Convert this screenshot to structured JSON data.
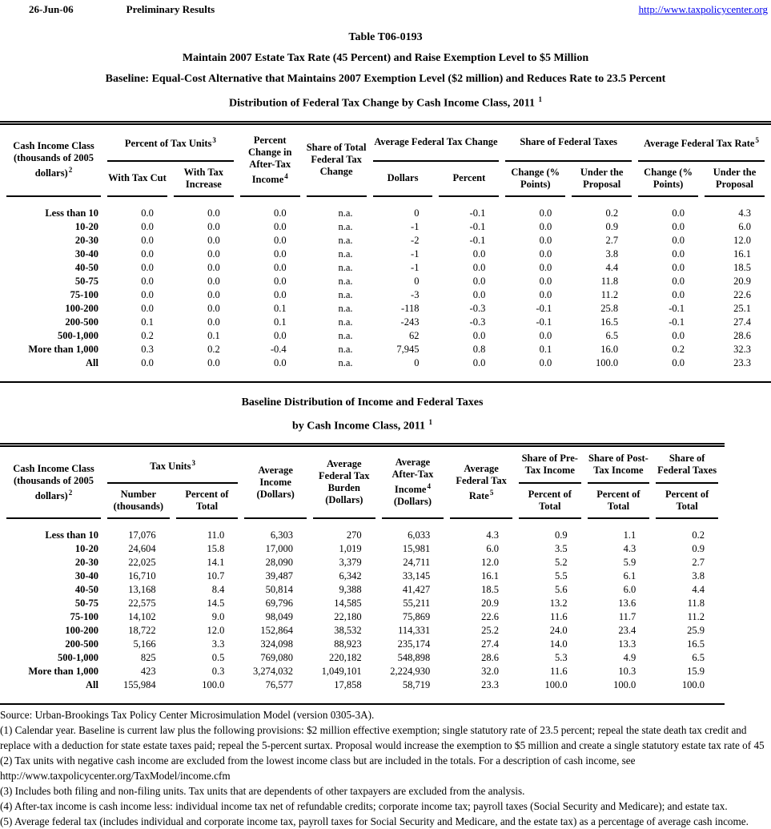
{
  "header": {
    "date": "26-Jun-06",
    "status": "Preliminary Results",
    "link": "http://www.taxpolicycenter.org"
  },
  "titles": {
    "table_number": "Table T06-0193",
    "line1": "Maintain 2007 Estate Tax Rate (45 Percent) and Raise Exemption Level to $5 Million",
    "line2": "Baseline: Equal-Cost Alternative that Maintains 2007 Exemption Level ($2 million) and Reduces Rate to 23.5 Percent",
    "line3": "Distribution of Federal Tax Change by Cash Income Class, 2011",
    "line3_sup": "1"
  },
  "table1": {
    "h": {
      "cash_income_class": "Cash Income Class (thousands of 2005 dollars)",
      "cash_income_class_sup": "2",
      "pct_tax_units": "Percent of Tax Units",
      "pct_tax_units_sup": "3",
      "with_tax_cut": "With Tax Cut",
      "with_tax_increase": "With Tax Increase",
      "pct_change_ati": "Percent Change in After-Tax Income",
      "pct_change_ati_sup": "4",
      "share_total": "Share of Total Federal Tax Change",
      "avg_fed_tax_change": "Average Federal Tax Change",
      "dollars": "Dollars",
      "percent": "Percent",
      "share_fed_taxes": "Share of Federal Taxes",
      "change_pts": "Change (% Points)",
      "under_proposal": "Under the Proposal",
      "avg_fed_tax_rate": "Average Federal Tax Rate",
      "avg_fed_tax_rate_sup": "5"
    },
    "rows": [
      [
        "Less than 10",
        "0.0",
        "0.0",
        "0.0",
        "n.a.",
        "0",
        "-0.1",
        "0.0",
        "0.2",
        "0.0",
        "4.3"
      ],
      [
        "10-20",
        "0.0",
        "0.0",
        "0.0",
        "n.a.",
        "-1",
        "-0.1",
        "0.0",
        "0.9",
        "0.0",
        "6.0"
      ],
      [
        "20-30",
        "0.0",
        "0.0",
        "0.0",
        "n.a.",
        "-2",
        "-0.1",
        "0.0",
        "2.7",
        "0.0",
        "12.0"
      ],
      [
        "30-40",
        "0.0",
        "0.0",
        "0.0",
        "n.a.",
        "-1",
        "0.0",
        "0.0",
        "3.8",
        "0.0",
        "16.1"
      ],
      [
        "40-50",
        "0.0",
        "0.0",
        "0.0",
        "n.a.",
        "-1",
        "0.0",
        "0.0",
        "4.4",
        "0.0",
        "18.5"
      ],
      [
        "50-75",
        "0.0",
        "0.0",
        "0.0",
        "n.a.",
        "0",
        "0.0",
        "0.0",
        "11.8",
        "0.0",
        "20.9"
      ],
      [
        "75-100",
        "0.0",
        "0.0",
        "0.0",
        "n.a.",
        "-3",
        "0.0",
        "0.0",
        "11.2",
        "0.0",
        "22.6"
      ],
      [
        "100-200",
        "0.0",
        "0.0",
        "0.1",
        "n.a.",
        "-118",
        "-0.3",
        "-0.1",
        "25.8",
        "-0.1",
        "25.1"
      ],
      [
        "200-500",
        "0.1",
        "0.0",
        "0.1",
        "n.a.",
        "-243",
        "-0.3",
        "-0.1",
        "16.5",
        "-0.1",
        "27.4"
      ],
      [
        "500-1,000",
        "0.2",
        "0.1",
        "0.0",
        "n.a.",
        "62",
        "0.0",
        "0.0",
        "6.5",
        "0.0",
        "28.6"
      ],
      [
        "More than 1,000",
        "0.3",
        "0.2",
        "-0.4",
        "n.a.",
        "7,945",
        "0.8",
        "0.1",
        "16.0",
        "0.2",
        "32.3"
      ],
      [
        "All",
        "0.0",
        "0.0",
        "0.0",
        "n.a.",
        "0",
        "0.0",
        "0.0",
        "100.0",
        "0.0",
        "23.3"
      ]
    ]
  },
  "table2_title": {
    "line1": "Baseline Distribution of Income and Federal Taxes",
    "line2": "by Cash Income Class, 2011",
    "sup": "1"
  },
  "table2": {
    "h": {
      "cash_income_class": "Cash Income Class (thousands of 2005 dollars)",
      "cash_income_class_sup": "2",
      "tax_units": "Tax Units",
      "tax_units_sup": "3",
      "number_thousands": "Number (thousands)",
      "percent_of_total": "Percent of Total",
      "avg_income": "Average Income (Dollars)",
      "avg_fed_tax_burden": "Average Federal Tax Burden (Dollars)",
      "avg_after_tax_income": "Average After-Tax Income",
      "avg_after_tax_income_sup": "4",
      "avg_after_tax_income_suffix": "(Dollars)",
      "avg_fed_tax_rate": "Average Federal Tax Rate",
      "avg_fed_tax_rate_sup": "5",
      "share_pre_tax": "Share of Pre-Tax Income",
      "share_post_tax": "Share of Post-Tax Income",
      "share_fed_taxes": "Share of Federal Taxes"
    },
    "rows": [
      [
        "Less than 10",
        "17,076",
        "11.0",
        "6,303",
        "270",
        "6,033",
        "4.3",
        "0.9",
        "1.1",
        "0.2"
      ],
      [
        "10-20",
        "24,604",
        "15.8",
        "17,000",
        "1,019",
        "15,981",
        "6.0",
        "3.5",
        "4.3",
        "0.9"
      ],
      [
        "20-30",
        "22,025",
        "14.1",
        "28,090",
        "3,379",
        "24,711",
        "12.0",
        "5.2",
        "5.9",
        "2.7"
      ],
      [
        "30-40",
        "16,710",
        "10.7",
        "39,487",
        "6,342",
        "33,145",
        "16.1",
        "5.5",
        "6.1",
        "3.8"
      ],
      [
        "40-50",
        "13,168",
        "8.4",
        "50,814",
        "9,388",
        "41,427",
        "18.5",
        "5.6",
        "6.0",
        "4.4"
      ],
      [
        "50-75",
        "22,575",
        "14.5",
        "69,796",
        "14,585",
        "55,211",
        "20.9",
        "13.2",
        "13.6",
        "11.8"
      ],
      [
        "75-100",
        "14,102",
        "9.0",
        "98,049",
        "22,180",
        "75,869",
        "22.6",
        "11.6",
        "11.7",
        "11.2"
      ],
      [
        "100-200",
        "18,722",
        "12.0",
        "152,864",
        "38,532",
        "114,331",
        "25.2",
        "24.0",
        "23.4",
        "25.9"
      ],
      [
        "200-500",
        "5,166",
        "3.3",
        "324,098",
        "88,923",
        "235,174",
        "27.4",
        "14.0",
        "13.3",
        "16.5"
      ],
      [
        "500-1,000",
        "825",
        "0.5",
        "769,080",
        "220,182",
        "548,898",
        "28.6",
        "5.3",
        "4.9",
        "6.5"
      ],
      [
        "More than 1,000",
        "423",
        "0.3",
        "3,274,032",
        "1,049,101",
        "2,224,930",
        "32.0",
        "11.6",
        "10.3",
        "15.9"
      ],
      [
        "All",
        "155,984",
        "100.0",
        "76,577",
        "17,858",
        "58,719",
        "23.3",
        "100.0",
        "100.0",
        "100.0"
      ]
    ]
  },
  "footnotes": {
    "lines": [
      "Source: Urban-Brookings Tax Policy Center Microsimulation Model (version 0305-3A).",
      "(1) Calendar year. Baseline is current law plus the following provisions: $2 million effective exemption;  single statutory rate of 23.5 percent; repeal the state death tax credit and",
      "replace with a deduction for state estate taxes paid; repeal the 5-percent surtax.  Proposal would increase the exemption to $5 million and create a single statutory estate tax rate of 45",
      "(2) Tax units with negative cash income are excluded from the lowest income class but are included in the totals. For a description of cash income, see",
      "http://www.taxpolicycenter.org/TaxModel/income.cfm",
      "(3) Includes both filing and non-filing units.  Tax units that are dependents of other taxpayers are excluded from the analysis.",
      "(4) After-tax income is cash income less: individual income tax net of refundable credits; corporate income tax; payroll taxes (Social Security and Medicare); and estate tax.",
      "(5) Average federal tax (includes individual and corporate income tax, payroll taxes for Social Security and Medicare, and the estate tax) as a percentage of average cash income."
    ]
  }
}
